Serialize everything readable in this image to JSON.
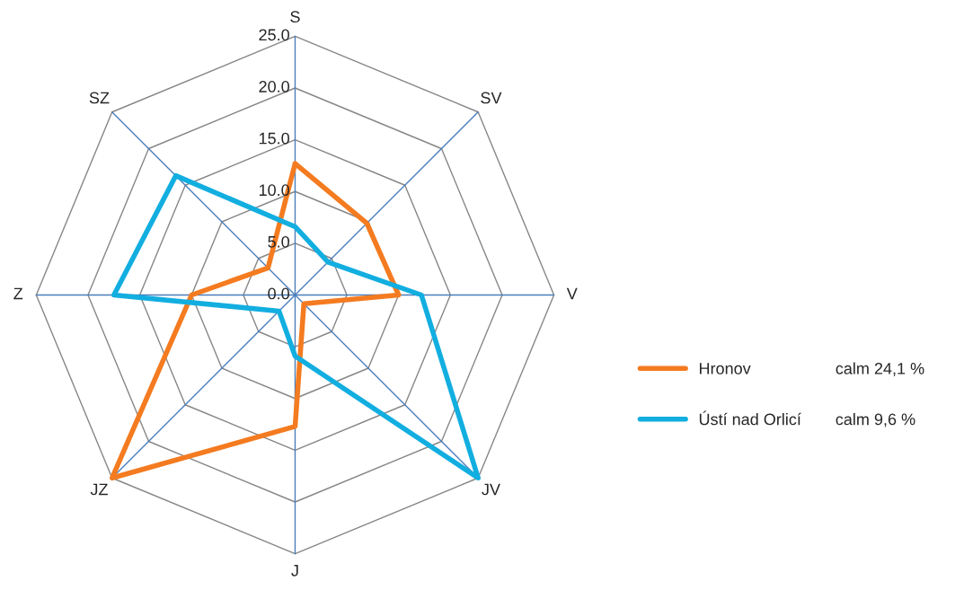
{
  "chart_data": {
    "type": "radar",
    "categories": [
      "S",
      "SV",
      "V",
      "JV",
      "J",
      "JZ",
      "Z",
      "SZ"
    ],
    "series": [
      {
        "name": "Hronov",
        "color": "#f47b20",
        "values": [
          12.7,
          9.8,
          10.0,
          1.2,
          12.7,
          25.0,
          10.0,
          3.7
        ]
      },
      {
        "name": "Ústí nad Orlicí",
        "color": "#12aee0",
        "values": [
          6.6,
          4.5,
          12.2,
          25.0,
          5.9,
          2.2,
          17.5,
          16.3
        ]
      }
    ],
    "ylim": [
      0,
      25
    ],
    "yticks": [
      {
        "value": 0,
        "label": "0.0"
      },
      {
        "value": 5,
        "label": "5.0"
      },
      {
        "value": 10,
        "label": "10.0"
      },
      {
        "value": 15,
        "label": "15.0"
      },
      {
        "value": 20,
        "label": "20.0"
      },
      {
        "value": 25,
        "label": "25.0"
      }
    ],
    "annotations": [
      "calm 24,1 %",
      "calm 9,6 %"
    ],
    "legend": "right",
    "grid": true,
    "marker": "none",
    "line_style": "solid"
  }
}
